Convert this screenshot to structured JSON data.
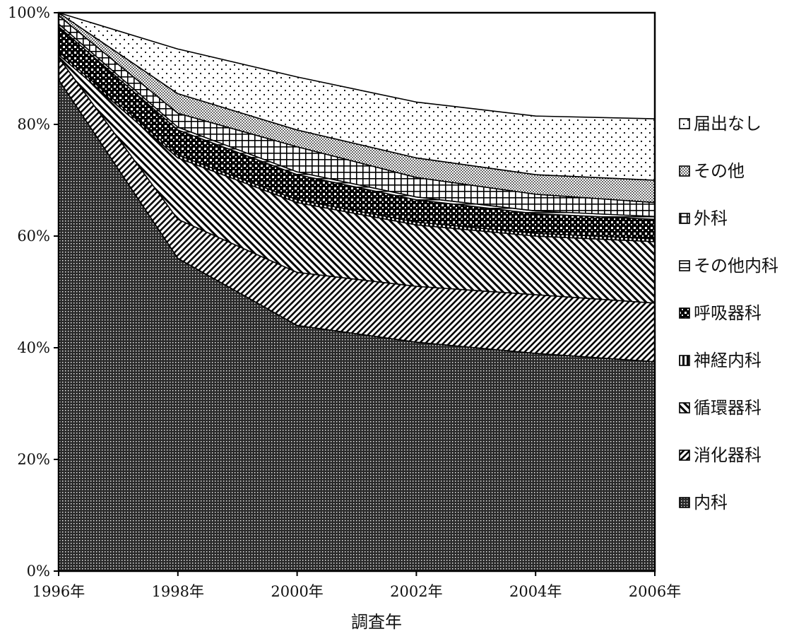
{
  "chart_data": {
    "type": "area",
    "stacking": "percent",
    "title": "",
    "xlabel": "調査年",
    "ylabel": "",
    "x": [
      1996,
      1998,
      2000,
      2002,
      2004,
      2006
    ],
    "x_tick_labels": [
      "1996年",
      "1998年",
      "2000年",
      "2002年",
      "2004年",
      "2006年"
    ],
    "y_tick_labels": [
      "0%",
      "20%",
      "40%",
      "60%",
      "80%",
      "100%"
    ],
    "ylim": [
      0,
      100
    ],
    "grid": false,
    "legend_position": "right",
    "series": [
      {
        "name": "内科",
        "values": [
          88,
          56,
          44,
          41,
          39,
          37.5
        ]
      },
      {
        "name": "消化器科",
        "values": [
          4,
          7,
          9.5,
          10,
          10.5,
          10.5
        ]
      },
      {
        "name": "循環器科",
        "values": [
          0.5,
          11,
          12.5,
          11,
          10.5,
          11
        ]
      },
      {
        "name": "神経内科",
        "values": [
          0.5,
          0.5,
          0.5,
          0.5,
          0.5,
          0.5
        ]
      },
      {
        "name": "呼吸器科",
        "values": [
          4.5,
          4.5,
          4.5,
          4,
          3.5,
          3.5
        ]
      },
      {
        "name": "その他内科",
        "values": [
          0.5,
          0.5,
          0.5,
          0.5,
          0.5,
          0.5
        ]
      },
      {
        "name": "外科",
        "values": [
          1.5,
          2.5,
          4.5,
          3.5,
          3,
          2.5
        ]
      },
      {
        "name": "その他",
        "values": [
          0.5,
          3.5,
          3,
          3.5,
          3.5,
          4
        ]
      },
      {
        "name": "届出なし",
        "values": [
          0,
          8,
          9.5,
          10,
          10.5,
          11
        ]
      }
    ]
  }
}
